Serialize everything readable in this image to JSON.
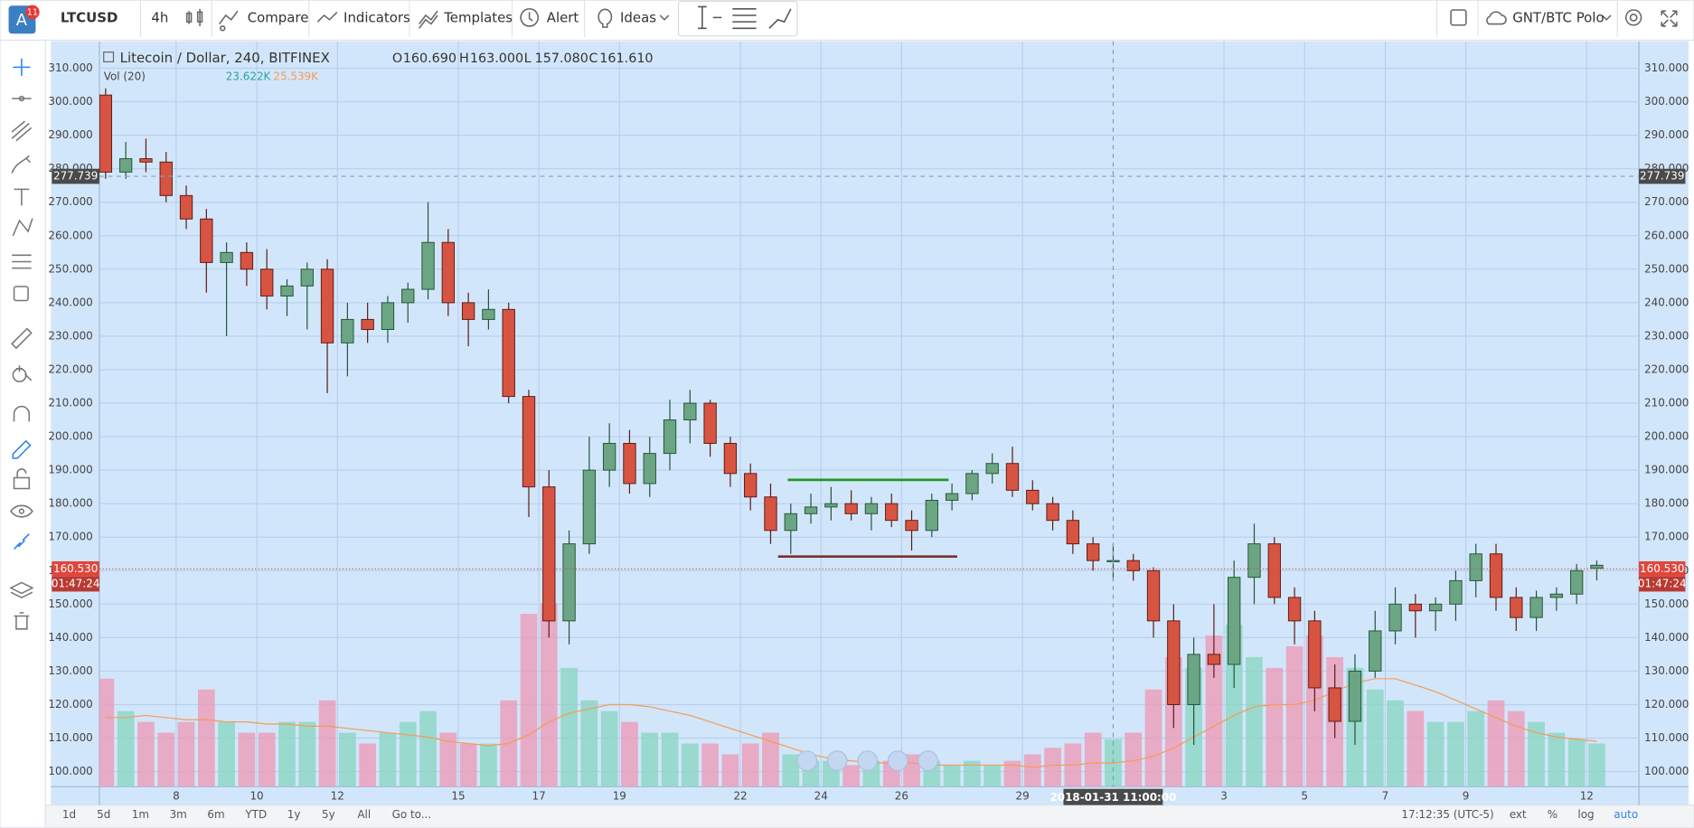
{
  "toolbar": {
    "avatar": "A",
    "badge": "11",
    "symbol": "LTCUSD",
    "interval": "4h",
    "items": [
      "Compare",
      "Indicators",
      "Templates",
      "Alert",
      "Ideas"
    ],
    "watchlist": "GNT/BTC Polo"
  },
  "bottom_bar": {
    "ranges": [
      "1d",
      "5d",
      "1m",
      "3m",
      "6m",
      "YTD",
      "1y",
      "5y",
      "All"
    ],
    "goto": "Go to...",
    "clock": "17:12:35 (UTC-5)",
    "options": [
      "ext",
      "%",
      "log"
    ],
    "auto": "auto"
  },
  "chart_data": {
    "type": "candlestick",
    "title": "Litecoin / Dollar, 240, BITFINEX",
    "ohlc_legend": [
      {
        "key": "O",
        "value": "160.690"
      },
      {
        "key": "H",
        "value": "163.000"
      },
      {
        "key": "L",
        "value": "157.080"
      },
      {
        "key": "C",
        "value": "161.610"
      }
    ],
    "volume_legend": {
      "name": "Vol (20)",
      "value": "23.622K",
      "ma": "25.539K"
    },
    "open": [
      302,
      279,
      283,
      282,
      272,
      265,
      252,
      255,
      250,
      242,
      245,
      250,
      228,
      235,
      232,
      240,
      244,
      258,
      240,
      235,
      238,
      212,
      185,
      145,
      168,
      190,
      198,
      186,
      195,
      205,
      210,
      198,
      189,
      182,
      172,
      177,
      179,
      180,
      177,
      180,
      175,
      172,
      181,
      183,
      189,
      192,
      184,
      180,
      175,
      168,
      163,
      163,
      160,
      145,
      120,
      135,
      132,
      158,
      168,
      152,
      145,
      125,
      115,
      130,
      142,
      150,
      148,
      150,
      157,
      165,
      152,
      146,
      152,
      153,
      160.69
    ],
    "high": [
      304,
      288,
      289,
      285,
      275,
      268,
      258,
      258,
      256,
      247,
      252,
      253,
      240,
      240,
      242,
      246,
      270,
      262,
      243,
      244,
      240,
      214,
      190,
      172,
      200,
      204,
      202,
      200,
      211,
      214,
      211,
      200,
      192,
      186,
      180,
      183,
      185,
      184,
      182,
      183,
      178,
      183,
      186,
      190,
      195,
      197,
      187,
      182,
      178,
      170,
      168,
      165,
      161,
      150,
      140,
      150,
      163,
      174,
      170,
      155,
      148,
      132,
      135,
      148,
      155,
      153,
      152,
      160,
      168,
      168,
      155,
      154,
      155,
      162,
      163
    ],
    "low": [
      277,
      277,
      279,
      270,
      262,
      243,
      230,
      245,
      238,
      236,
      232,
      213,
      218,
      228,
      228,
      234,
      241,
      236,
      227,
      232,
      210,
      176,
      140,
      138,
      165,
      185,
      183,
      182,
      190,
      198,
      194,
      185,
      178,
      168,
      165,
      174,
      175,
      175,
      172,
      173,
      166,
      170,
      178,
      181,
      186,
      182,
      178,
      172,
      165,
      160,
      157,
      157,
      140,
      113,
      108,
      128,
      125,
      150,
      150,
      138,
      118,
      110,
      108,
      128,
      138,
      140,
      142,
      145,
      152,
      148,
      142,
      142,
      148,
      150,
      157.08
    ],
    "close": [
      279,
      283,
      282,
      272,
      265,
      252,
      255,
      250,
      242,
      245,
      250,
      228,
      235,
      232,
      240,
      244,
      258,
      240,
      235,
      238,
      212,
      185,
      145,
      168,
      190,
      198,
      186,
      195,
      205,
      210,
      198,
      189,
      182,
      172,
      177,
      179,
      180,
      177,
      180,
      175,
      172,
      181,
      183,
      189,
      192,
      184,
      180,
      175,
      168,
      163,
      163,
      160,
      145,
      120,
      135,
      132,
      158,
      168,
      152,
      145,
      125,
      115,
      130,
      142,
      150,
      148,
      150,
      157,
      165,
      152,
      146,
      152,
      153,
      160,
      161.61
    ],
    "volume": [
      50,
      35,
      30,
      25,
      30,
      45,
      30,
      25,
      25,
      30,
      30,
      40,
      25,
      20,
      25,
      30,
      35,
      25,
      20,
      20,
      40,
      80,
      85,
      55,
      40,
      35,
      30,
      25,
      25,
      20,
      20,
      15,
      20,
      25,
      15,
      12,
      12,
      10,
      12,
      12,
      15,
      12,
      10,
      12,
      10,
      12,
      15,
      18,
      20,
      25,
      22,
      25,
      45,
      60,
      55,
      70,
      75,
      60,
      55,
      65,
      70,
      60,
      55,
      45,
      40,
      35,
      30,
      30,
      35,
      40,
      35,
      30,
      25,
      22,
      20
    ],
    "volume_ma": [
      32,
      32,
      33,
      32,
      31,
      31,
      30,
      30,
      29,
      29,
      28,
      28,
      27,
      26,
      25,
      24,
      23,
      21,
      20,
      19,
      20,
      24,
      30,
      34,
      36,
      38,
      38,
      37,
      35,
      33,
      30,
      27,
      24,
      21,
      18,
      15,
      13,
      12,
      11,
      11,
      11,
      10,
      10,
      10,
      10,
      10,
      9,
      10,
      10,
      11,
      11,
      12,
      14,
      18,
      23,
      28,
      33,
      37,
      38,
      38,
      40,
      44,
      48,
      50,
      50,
      47,
      44,
      40,
      36,
      32,
      28,
      25,
      23,
      22,
      21
    ],
    "up_color": "#6ba583",
    "down_color": "#d75442",
    "volume_up_color": "#8fd6c6",
    "volume_down_color": "#eba0bb",
    "ma_color": "#f59b55",
    "background": "#d2e6fb",
    "grid": true,
    "vlim": [
      0,
      100
    ],
    "xlim": [
      -0.31,
      76.09
    ],
    "xticks": [
      {
        "value": 3.5,
        "label": "8"
      },
      {
        "value": 7.5,
        "label": "10"
      },
      {
        "value": 11.5,
        "label": "12"
      },
      {
        "value": 17.5,
        "label": "15"
      },
      {
        "value": 21.5,
        "label": "17"
      },
      {
        "value": 25.5,
        "label": "19"
      },
      {
        "value": 31.5,
        "label": "22"
      },
      {
        "value": 35.5,
        "label": "24"
      },
      {
        "value": 39.5,
        "label": "26"
      },
      {
        "value": 45.5,
        "label": "29"
      },
      {
        "value": 55.5,
        "label": "3"
      },
      {
        "value": 59.5,
        "label": "5"
      },
      {
        "value": 63.5,
        "label": "7"
      },
      {
        "value": 67.5,
        "label": "9"
      },
      {
        "value": 73.5,
        "label": "12"
      }
    ],
    "ylim": [
      95.48,
      318.06
    ],
    "yticks": [
      {
        "value": 100,
        "label": "100.000"
      },
      {
        "value": 110,
        "label": "110.000"
      },
      {
        "value": 120,
        "label": "120.000"
      },
      {
        "value": 130,
        "label": "130.000"
      },
      {
        "value": 140,
        "label": "140.000"
      },
      {
        "value": 150,
        "label": "150.000"
      },
      {
        "value": 160,
        "label": "160.000"
      },
      {
        "value": 170,
        "label": "170.000"
      },
      {
        "value": 180,
        "label": "180.000"
      },
      {
        "value": 190,
        "label": "190.000"
      },
      {
        "value": 200,
        "label": "200.000"
      },
      {
        "value": 210,
        "label": "210.000"
      },
      {
        "value": 220,
        "label": "220.000"
      },
      {
        "value": 230,
        "label": "230.000"
      },
      {
        "value": 240,
        "label": "240.000"
      },
      {
        "value": 250,
        "label": "250.000"
      },
      {
        "value": 260,
        "label": "260.000"
      },
      {
        "value": 270,
        "label": "270.000"
      },
      {
        "value": 280,
        "label": "280.000"
      },
      {
        "value": 290,
        "label": "290.000"
      },
      {
        "value": 300,
        "label": "300.000"
      },
      {
        "value": 310,
        "label": "310.000"
      }
    ],
    "last_price": {
      "value": 160.53,
      "label": "160.530",
      "countdown": "01:47:24",
      "color": "#e0463c"
    },
    "crosshair": {
      "price": {
        "value": 277.739,
        "label": "277.739"
      },
      "x": {
        "value": 50,
        "label": "2018-01-31 11:00:00"
      }
    },
    "drawings": [
      {
        "price": 187.1,
        "from": 33.85,
        "to": 41.83,
        "color": "#1f9a1f"
      },
      {
        "price": 164.2,
        "from": 33.37,
        "to": 42.26,
        "color": "#7a2f2a"
      }
    ]
  }
}
